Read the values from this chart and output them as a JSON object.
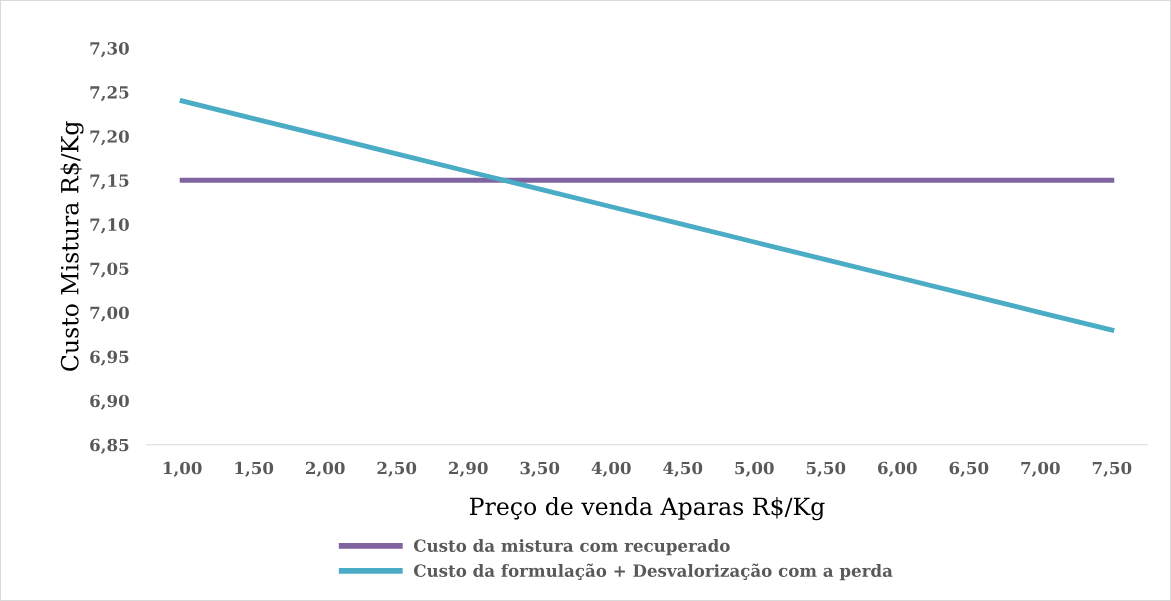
{
  "chart_data": {
    "type": "line",
    "xlabel": "Preço de venda Aparas R$/Kg",
    "ylabel": "Custo Mistura R$/Kg",
    "categories": [
      "1,00",
      "1,50",
      "2,00",
      "2,50",
      "2,90",
      "3,50",
      "4,00",
      "4,50",
      "5,00",
      "5,50",
      "6,00",
      "6,50",
      "7,00",
      "7,50"
    ],
    "series": [
      {
        "name": "Custo da mistura com recuperado",
        "color": "#8064a2",
        "values": [
          7.15,
          7.15,
          7.15,
          7.15,
          7.15,
          7.15,
          7.15,
          7.15,
          7.15,
          7.15,
          7.15,
          7.15,
          7.15,
          7.15
        ]
      },
      {
        "name": "Custo da formulação + Desvalorização com a perda",
        "color": "#4bacc6",
        "values": [
          7.24,
          7.22,
          7.2,
          7.18,
          7.16,
          7.14,
          7.12,
          7.1,
          7.08,
          7.06,
          7.04,
          7.02,
          7.0,
          6.98
        ]
      }
    ],
    "ylim": [
      6.85,
      7.3
    ],
    "yticks": [
      {
        "value": 6.85,
        "label": "6,85"
      },
      {
        "value": 6.9,
        "label": "6,90"
      },
      {
        "value": 6.95,
        "label": "6,95"
      },
      {
        "value": 7.0,
        "label": "7,00"
      },
      {
        "value": 7.05,
        "label": "7,05"
      },
      {
        "value": 7.1,
        "label": "7,10"
      },
      {
        "value": 7.15,
        "label": "7,15"
      },
      {
        "value": 7.2,
        "label": "7,20"
      },
      {
        "value": 7.25,
        "label": "7,25"
      },
      {
        "value": 7.3,
        "label": "7,30"
      }
    ],
    "legend": "bottom",
    "grid": false,
    "marker": "none",
    "line_style": "solid"
  }
}
